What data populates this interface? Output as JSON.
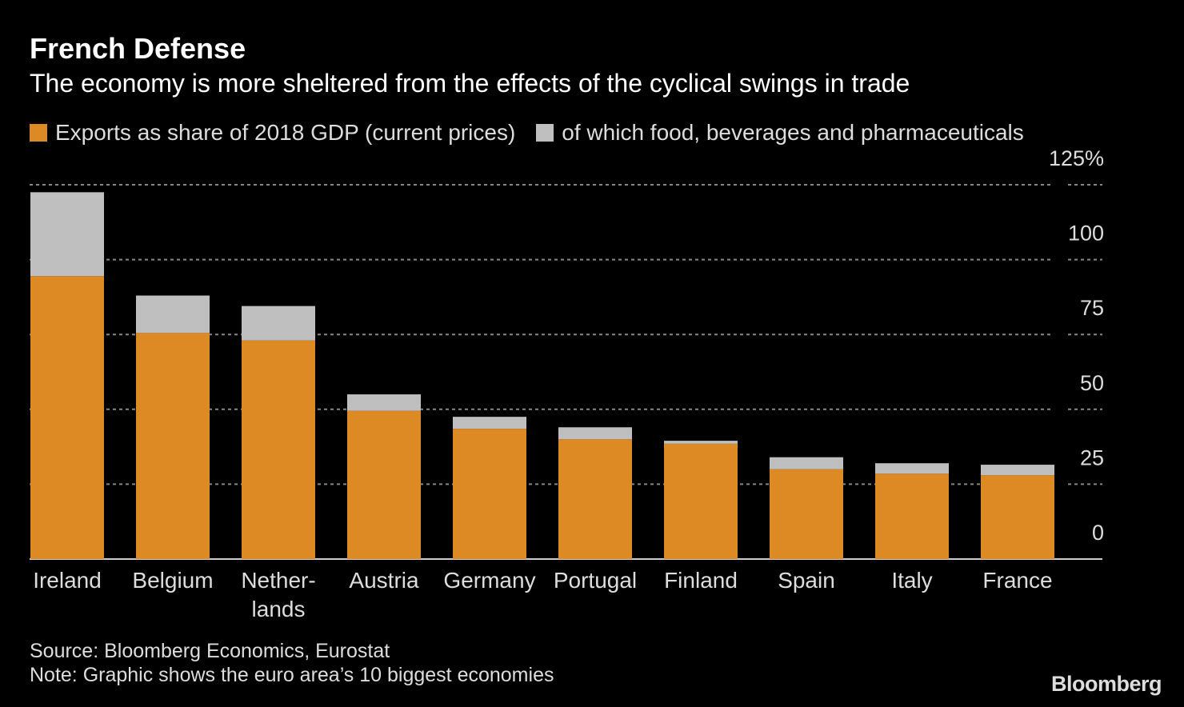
{
  "chart_data": {
    "type": "bar",
    "stacked": true,
    "title": "French Defense",
    "subtitle": "The economy is more sheltered from the effects of the cyclical swings in trade",
    "categories": [
      "Ireland",
      "Belgium",
      "Nether-\nlands",
      "Austria",
      "Germany",
      "Portugal",
      "Finland",
      "Spain",
      "Italy",
      "France"
    ],
    "series": [
      {
        "name": "Exports as share of 2018 GDP (current prices)",
        "color": "#dd8a25",
        "values": [
          94.5,
          75.5,
          73,
          49.5,
          43.5,
          40,
          38.5,
          30,
          28.5,
          28
        ]
      },
      {
        "name": "of which food, beverages and pharmaceuticals",
        "color": "#bfbfbf",
        "values": [
          28,
          12.5,
          11.5,
          5.5,
          4,
          4,
          1,
          4,
          3.5,
          3.5
        ]
      }
    ],
    "ylim": [
      0,
      125
    ],
    "yticks": [
      0,
      25,
      50,
      75,
      100,
      {
        "value": 125,
        "label": "125%"
      }
    ],
    "grid": true,
    "source": "Source: Bloomberg Economics, Eurostat",
    "note": "Note: Graphic shows the euro area’s 10 biggest economies",
    "brand": "Bloomberg"
  }
}
